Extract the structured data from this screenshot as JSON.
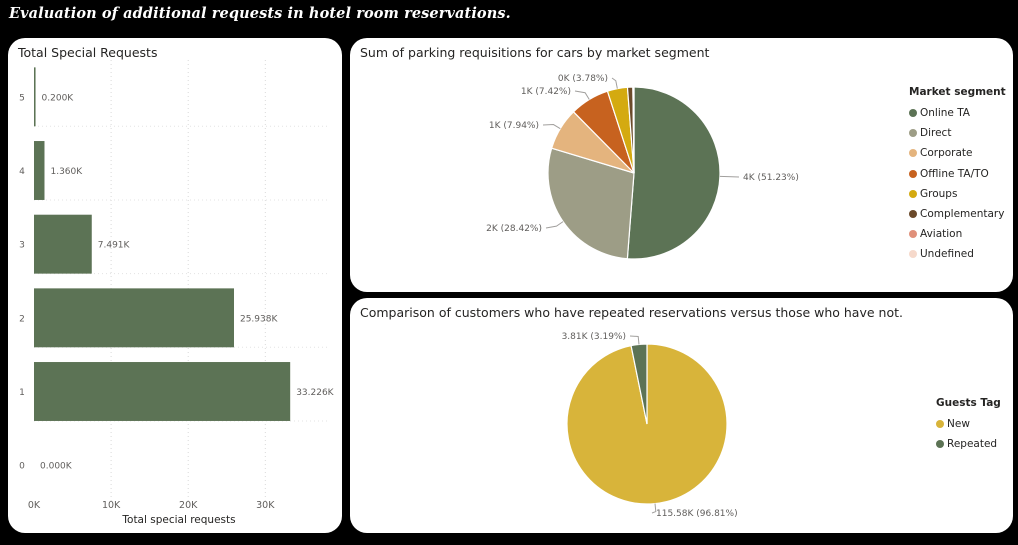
{
  "page": {
    "title": "Evaluation of additional requests in hotel room reservations."
  },
  "bar_card": {
    "title": "Total Special Requests"
  },
  "pie1_card": {
    "title": "Sum of parking requisitions for cars by market segment"
  },
  "pie2_card": {
    "title": "Comparison of customers who have repeated reservations versus those who have not."
  },
  "chart_data": [
    {
      "type": "bar",
      "orientation": "horizontal",
      "title": "Total Special Requests",
      "xlabel": "Total special requests",
      "ylabel": "",
      "categories": [
        "5",
        "4",
        "3",
        "2",
        "1",
        "0"
      ],
      "values": [
        200,
        1360,
        7491,
        25938,
        33226,
        0
      ],
      "data_labels": [
        "0.200K",
        "1.360K",
        "7.491K",
        "25.938K",
        "33.226K",
        "0.000K"
      ],
      "xticks": [
        0,
        10000,
        20000,
        30000
      ],
      "xtick_labels": [
        "0K",
        "10K",
        "20K",
        "30K"
      ],
      "xlim": [
        0,
        38000
      ],
      "color": "#5c7355",
      "grid": true
    },
    {
      "type": "pie",
      "title": "Sum of parking requisitions for cars by market segment",
      "legend_title": "Market segment",
      "legend_position": "right",
      "labels": [
        "Online TA",
        "Direct",
        "Corporate",
        "Offline TA/TO",
        "Groups",
        "Complementary",
        "Aviation",
        "Undefined"
      ],
      "values": [
        51.23,
        28.42,
        7.94,
        7.42,
        3.78,
        1.0,
        0.15,
        0.06
      ],
      "data_labels": [
        "4K (51.23%)",
        "2K (28.42%)",
        "1K (7.94%)",
        "1K (7.42%)",
        "0K (3.78%)",
        "",
        "",
        ""
      ],
      "colors": [
        "#5c7355",
        "#9d9d86",
        "#e4b47e",
        "#c7621f",
        "#d4aa10",
        "#6b4a2a",
        "#e0907a",
        "#f6d9cb"
      ]
    },
    {
      "type": "pie",
      "title": "Comparison of customers who have repeated reservations versus those who have not.",
      "legend_title": "Guests Tag",
      "legend_position": "right",
      "labels": [
        "New",
        "Repeated"
      ],
      "values": [
        115580,
        3810
      ],
      "data_labels": [
        "115.58K (96.81%)",
        "3.81K (3.19%)"
      ],
      "colors": [
        "#d8b43a",
        "#5c7355"
      ]
    }
  ]
}
